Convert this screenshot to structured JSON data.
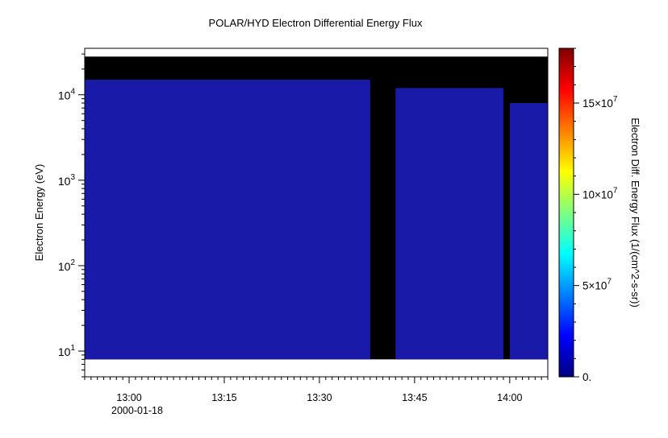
{
  "chart_data": {
    "type": "heatmap",
    "title": "POLAR/HYD  Electron Differential Energy Flux",
    "xlabel": "",
    "x_date": "2000-01-18",
    "x_ticks": [
      "13:00",
      "13:15",
      "13:30",
      "13:45",
      "14:00"
    ],
    "xlim": [
      "12:53",
      "14:06"
    ],
    "ylabel": "Electron Energy (eV)",
    "y_scale": "log",
    "ylim": [
      5,
      35000
    ],
    "y_ticks": [
      {
        "value": 10,
        "base": "10",
        "exp": "1"
      },
      {
        "value": 100,
        "base": "10",
        "exp": "2"
      },
      {
        "value": 1000,
        "base": "10",
        "exp": "3"
      },
      {
        "value": 10000,
        "base": "10",
        "exp": "4"
      }
    ],
    "colorbar": {
      "label": "Electron Diff. Energy Flux (1/(cm^2-s-sr))",
      "range": [
        0,
        180000000
      ],
      "ticks": [
        {
          "value": 0,
          "text": "0."
        },
        {
          "value": 50000000,
          "mantissa": "5",
          "exp": "7"
        },
        {
          "value": 100000000,
          "mantissa": "10",
          "exp": "7"
        },
        {
          "value": 150000000,
          "mantissa": "15",
          "exp": "7"
        }
      ],
      "colormap": [
        "#00007f",
        "#0000ff",
        "#007fff",
        "#00ffff",
        "#7fff7f",
        "#ffff00",
        "#ff7f00",
        "#ff0000",
        "#7f0000"
      ]
    },
    "colors": {
      "flux": "#1a1aa8",
      "fill": "#000000"
    },
    "regions": [
      {
        "name": "energy-band",
        "x_start": "12:53",
        "x_end": "14:06",
        "y_min": 8,
        "y_max": 28000,
        "color": "#000000"
      },
      {
        "name": "low-energy-flux",
        "x_start": "12:53",
        "x_end": "13:38",
        "y_min": 8,
        "y_max": 15000,
        "color": "#1a1aa8"
      },
      {
        "name": "interval-flux",
        "x_start": "13:42",
        "x_end": "13:59",
        "y_min": 8,
        "y_max": 12000,
        "color": "#1a1aa8"
      },
      {
        "name": "late-flux",
        "x_start": "14:00",
        "x_end": "14:06",
        "y_min": 8,
        "y_max": 8000,
        "color": "#1a1aa8"
      }
    ]
  }
}
